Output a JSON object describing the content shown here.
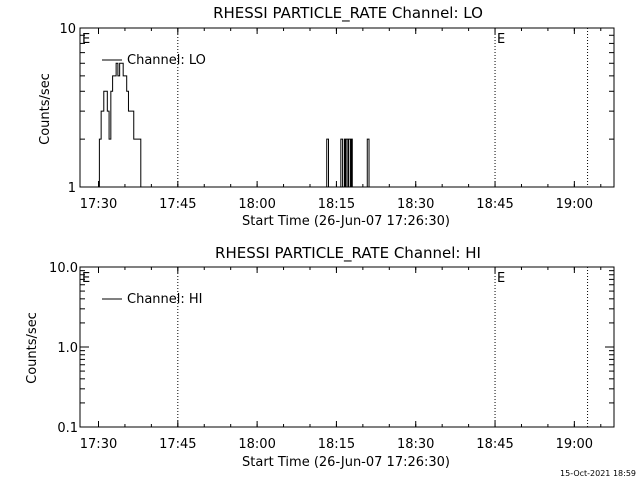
{
  "footer": {
    "timestamp": "15-Oct-2021 18:59"
  },
  "chart_data": [
    {
      "type": "line",
      "title": "RHESSI PARTICLE_RATE Channel: LO",
      "xlabel": "Start Time (26-Jun-07 17:26:30)",
      "ylabel": "Counts/sec",
      "yscale": "log",
      "xlim": [
        "17:26:30",
        "19:07:30"
      ],
      "ylim": [
        1,
        10
      ],
      "x_ticks": [
        "17:30",
        "17:45",
        "18:00",
        "18:15",
        "18:30",
        "18:45",
        "19:00"
      ],
      "y_ticks": [
        "1",
        "10"
      ],
      "legend": {
        "entries": [
          "Channel: LO"
        ],
        "position": "top-left"
      },
      "markers": [
        {
          "time": "17:26:30",
          "label": "E"
        },
        {
          "time": "17:45:00",
          "label": ""
        },
        {
          "time": "18:45:00",
          "label": "E"
        },
        {
          "time": "19:02:30",
          "label": ""
        }
      ],
      "series": [
        {
          "name": "Channel: LO",
          "segments": [
            {
              "x": [
                "17:29:40",
                "17:30:10",
                "17:30:30",
                "17:31:00",
                "17:31:20",
                "17:31:40",
                "17:32:00",
                "17:32:20",
                "17:32:40",
                "17:33:00",
                "17:33:20",
                "17:33:40",
                "17:34:00",
                "17:34:20",
                "17:34:40",
                "17:35:00",
                "17:35:20",
                "17:35:40",
                "17:36:00",
                "17:36:20",
                "17:36:40",
                "17:37:00",
                "17:37:20",
                "17:37:40",
                "17:38:00",
                "17:38:20"
              ],
              "y": [
                1,
                2,
                3,
                4,
                4,
                3,
                2,
                4,
                5,
                5,
                6,
                5,
                6,
                6,
                5,
                5,
                4,
                3,
                3,
                3,
                2,
                2,
                2,
                2,
                1,
                1
              ]
            },
            {
              "x": [
                "18:12:50",
                "18:13:10",
                "18:13:10",
                "18:13:30"
              ],
              "y": [
                1,
                2,
                2,
                1
              ]
            },
            {
              "x": [
                "18:15:30",
                "18:15:50",
                "18:16:10",
                "18:16:30",
                "18:16:40",
                "18:16:50",
                "18:17:10",
                "18:17:20",
                "18:17:30",
                "18:17:40",
                "18:17:50",
                "18:18:00",
                "18:18:20",
                "18:18:40",
                "18:19:00"
              ],
              "y": [
                1,
                2,
                1,
                2,
                1,
                2,
                1,
                2,
                2,
                1,
                2,
                1,
                1,
                1,
                1
              ]
            },
            {
              "x": [
                "18:20:30",
                "18:20:50",
                "18:21:10"
              ],
              "y": [
                1,
                2,
                1
              ]
            }
          ]
        }
      ]
    },
    {
      "type": "line",
      "title": "RHESSI PARTICLE_RATE Channel: HI",
      "xlabel": "Start Time (26-Jun-07 17:26:30)",
      "ylabel": "Counts/sec",
      "yscale": "log",
      "xlim": [
        "17:26:30",
        "19:07:30"
      ],
      "ylim": [
        0.1,
        10.0
      ],
      "x_ticks": [
        "17:30",
        "17:45",
        "18:00",
        "18:15",
        "18:30",
        "18:45",
        "19:00"
      ],
      "y_ticks": [
        "0.1",
        "1.0",
        "10.0"
      ],
      "legend": {
        "entries": [
          "Channel: HI"
        ],
        "position": "top-left"
      },
      "markers": [
        {
          "time": "17:26:30",
          "label": "E"
        },
        {
          "time": "17:45:00",
          "label": ""
        },
        {
          "time": "18:45:00",
          "label": "E"
        },
        {
          "time": "19:02:30",
          "label": ""
        }
      ],
      "series": [
        {
          "name": "Channel: HI",
          "segments": []
        }
      ]
    }
  ]
}
